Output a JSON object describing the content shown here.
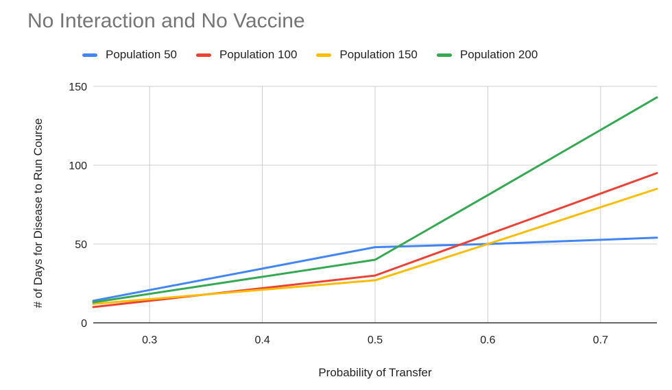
{
  "chart_data": {
    "type": "line",
    "title": "No Interaction and No Vaccine",
    "xlabel": "Probability of Transfer",
    "ylabel": "# of Days for Disease to Run Course",
    "x": [
      0.25,
      0.5,
      0.6,
      0.75
    ],
    "xlim": [
      0.25,
      0.75
    ],
    "ylim": [
      0,
      150
    ],
    "xticks": [
      0.3,
      0.4,
      0.5,
      0.6,
      0.7
    ],
    "yticks": [
      0,
      50,
      100,
      150
    ],
    "grid": true,
    "legend_position": "top",
    "series": [
      {
        "name": "Population 50",
        "color": "#4285f4",
        "values": [
          14,
          48,
          50,
          54
        ]
      },
      {
        "name": "Population 100",
        "color": "#ea4335",
        "values": [
          10,
          30,
          56,
          95
        ]
      },
      {
        "name": "Population 150",
        "color": "#fbbc04",
        "values": [
          12,
          27,
          50,
          85
        ]
      },
      {
        "name": "Population 200",
        "color": "#34a853",
        "values": [
          13,
          40,
          81,
          143
        ]
      }
    ]
  }
}
